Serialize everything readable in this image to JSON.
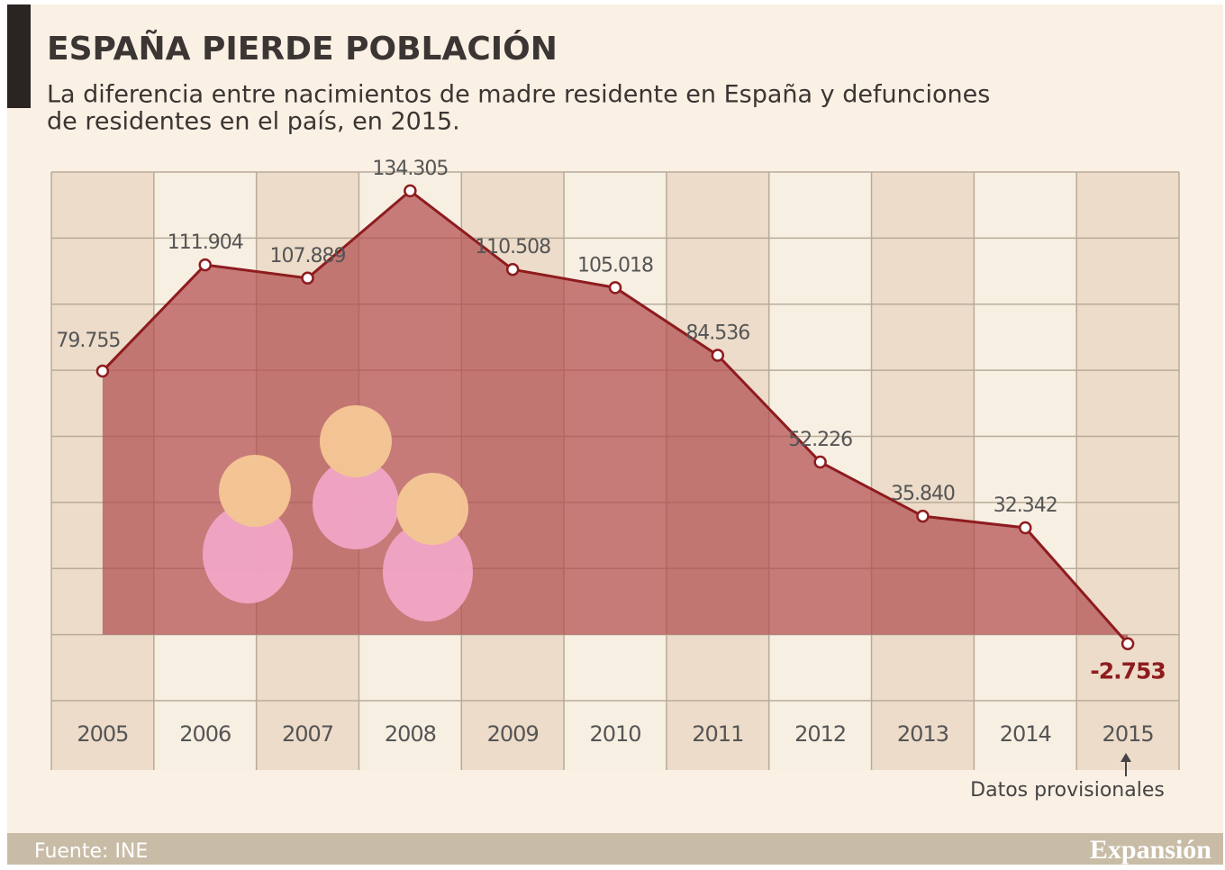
{
  "chart_data": {
    "type": "line",
    "title": "ESPAÑA PIERDE POBLACIÓN",
    "subtitle": [
      "La diferencia entre nacimientos de madre residente en España y defunciones",
      "de residentes en el país, en 2015."
    ],
    "categories": [
      "2005",
      "2006",
      "2007",
      "2008",
      "2009",
      "2010",
      "2011",
      "2012",
      "2013",
      "2014",
      "2015"
    ],
    "values": [
      79755,
      111904,
      107889,
      134305,
      110508,
      105018,
      84536,
      52226,
      35840,
      32342,
      -2753
    ],
    "value_labels": [
      "79.755",
      "111.904",
      "107.889",
      "134.305",
      "110.508",
      "105.018",
      "84.536",
      "52.226",
      "35.840",
      "32.342",
      "-2.753"
    ],
    "color": "#8e1c1f",
    "ylim": [
      -20000,
      140000
    ],
    "yticks": [
      -20000,
      0,
      20000,
      40000,
      60000,
      80000,
      100000,
      120000,
      140000
    ],
    "grid": true,
    "annotation": "Datos provisionales",
    "source": "Fuente: INE",
    "brand": "Expansión"
  }
}
